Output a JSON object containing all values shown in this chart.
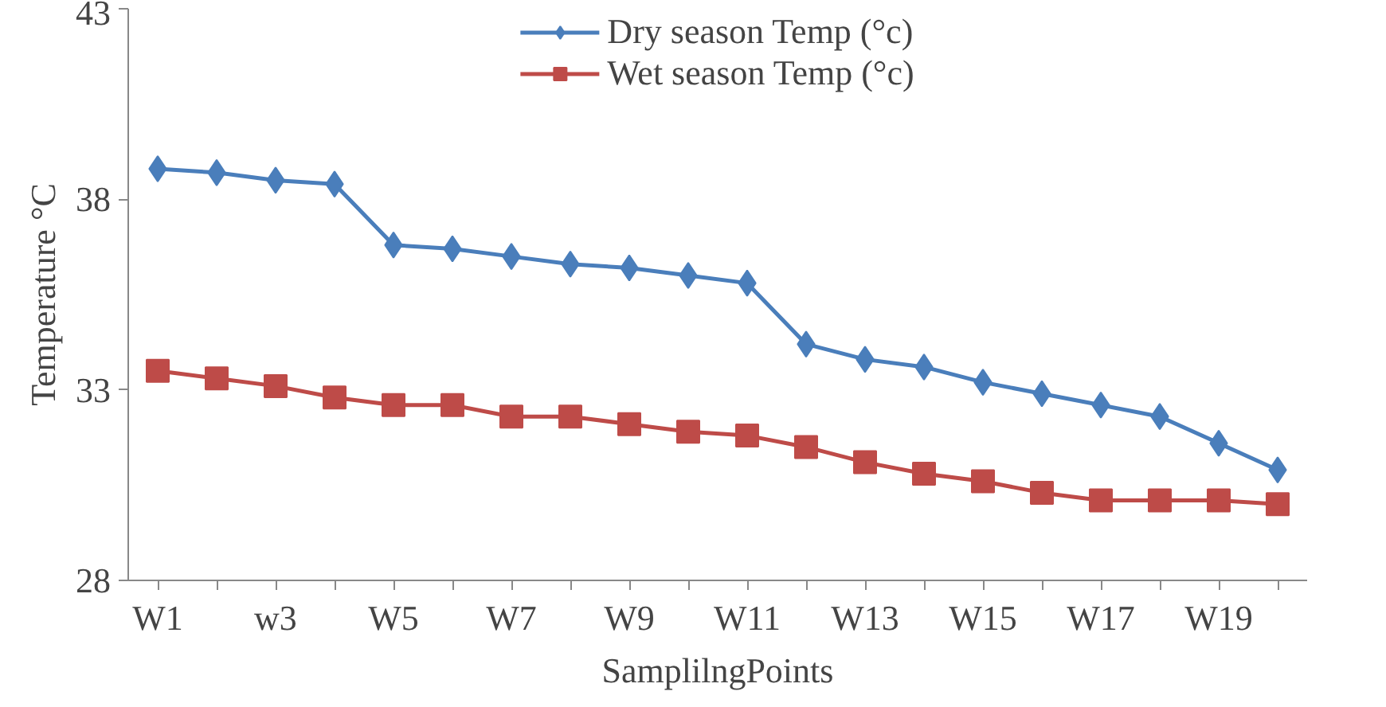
{
  "chart_data": {
    "type": "line",
    "xlabel": "SamplilngPoints",
    "ylabel": "Temperature °C",
    "categories": [
      "W1",
      null,
      "w3",
      null,
      "W5",
      null,
      "W7",
      null,
      "W9",
      null,
      "W11",
      null,
      "W13",
      null,
      "W15",
      null,
      "W17",
      null,
      "W19",
      null
    ],
    "series": [
      {
        "name": "Dry season Temp (°c)",
        "color": "#4a7ebb",
        "marker": "diamond",
        "values": [
          38.8,
          38.7,
          38.5,
          38.4,
          36.8,
          36.7,
          36.5,
          36.3,
          36.2,
          36.0,
          35.8,
          34.2,
          33.8,
          33.6,
          33.2,
          32.9,
          32.6,
          32.3,
          31.6,
          30.9
        ]
      },
      {
        "name": "Wet season Temp (°c)",
        "color": "#be4b48",
        "marker": "square",
        "values": [
          33.5,
          33.3,
          33.1,
          32.8,
          32.6,
          32.6,
          32.3,
          32.3,
          32.1,
          31.9,
          31.8,
          31.5,
          31.1,
          30.8,
          30.6,
          30.3,
          30.1,
          30.1,
          30.1,
          30.0
        ]
      }
    ],
    "ylim": [
      28,
      43
    ],
    "yticks": [
      28,
      33,
      38,
      43
    ],
    "grid": false,
    "legend": "top",
    "line_style": "solid"
  }
}
